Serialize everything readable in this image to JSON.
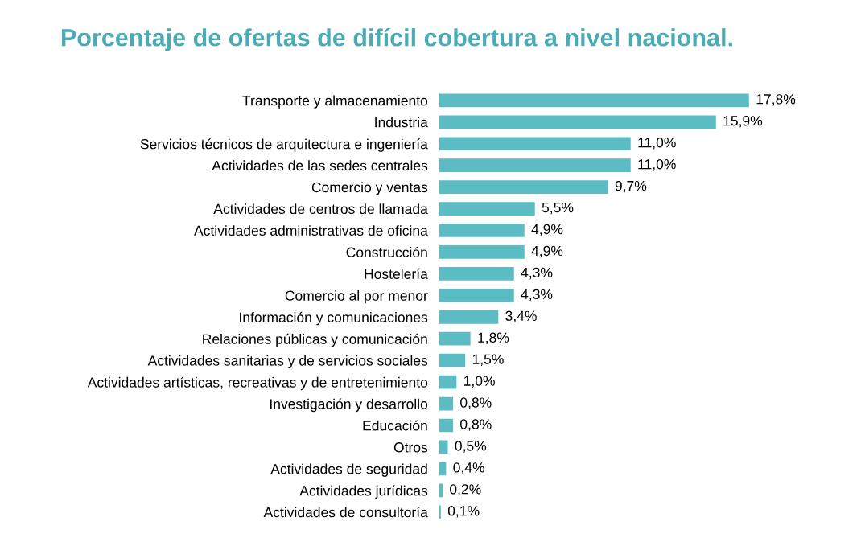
{
  "chart_data": {
    "type": "bar",
    "orientation": "horizontal",
    "title": "Porcentaje de ofertas de difícil cobertura a nivel nacional.",
    "categories": [
      "Transporte y almacenamiento",
      "Industria",
      "Servicios técnicos de arquitectura e ingeniería",
      "Actividades de las sedes centrales",
      "Comercio y ventas",
      "Actividades de centros de llamada",
      "Actividades administrativas de oficina",
      "Construcción",
      "Hostelería",
      "Comercio al por menor",
      "Información y comunicaciones",
      "Relaciones públicas y comunicación",
      "Actividades sanitarias y de servicios sociales",
      "Actividades artísticas, recreativas y de entretenimiento",
      "Investigación y desarrollo",
      "Educación",
      "Otros",
      "Actividades de seguridad",
      "Actividades jurídicas",
      "Actividades de consultoría"
    ],
    "values": [
      17.8,
      15.9,
      11.0,
      11.0,
      9.7,
      5.5,
      4.9,
      4.9,
      4.3,
      4.3,
      3.4,
      1.8,
      1.5,
      1.0,
      0.8,
      0.8,
      0.5,
      0.4,
      0.2,
      0.1
    ],
    "value_labels": [
      "17,8%",
      "15,9%",
      "11,0%",
      "11,0%",
      "9,7%",
      "5,5%",
      "4,9%",
      "4,9%",
      "4,3%",
      "4,3%",
      "3,4%",
      "1,8%",
      "1,5%",
      "1,0%",
      "0,8%",
      "0,8%",
      "0,5%",
      "0,4%",
      "0,2%",
      "0,1%"
    ],
    "color": "#5bbcc4",
    "grid": false,
    "legend": false
  }
}
